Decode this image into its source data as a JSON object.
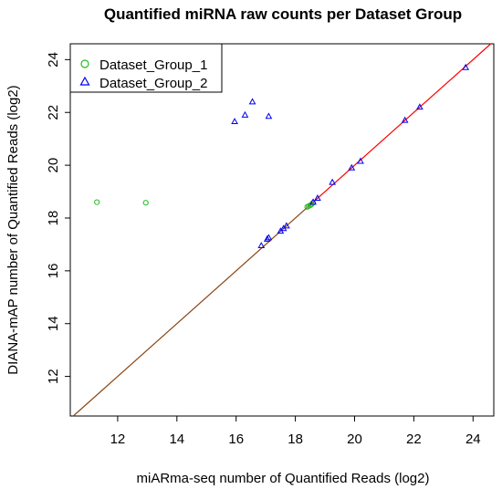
{
  "chart_data": {
    "type": "scatter",
    "title": "Quantified miRNA raw counts per Dataset Group",
    "xlabel": "miARma-seq number of Quantified Reads (log2)",
    "ylabel": "DIANA-mAP number of Quantified Reads (log2)",
    "xlim": [
      10.4,
      24.7
    ],
    "ylim": [
      10.5,
      24.6
    ],
    "x_ticks": [
      12,
      14,
      16,
      18,
      20,
      22,
      24
    ],
    "y_ticks": [
      12,
      14,
      16,
      18,
      20,
      22,
      24
    ],
    "x_tick_labels": [
      "12",
      "14",
      "16",
      "18",
      "20",
      "22",
      "24"
    ],
    "y_tick_labels": [
      "12",
      "14",
      "16",
      "18",
      "20",
      "22",
      "24"
    ],
    "grid": false,
    "legend_position": "top-left",
    "reference_line": {
      "type": "identity",
      "colors": [
        "#8b4513",
        "#ff0000"
      ],
      "switch_at": 18.4
    },
    "series": [
      {
        "name": "Dataset_Group_1",
        "marker": "circle",
        "color": "#22bb22",
        "points": [
          [
            11.3,
            18.6
          ],
          [
            12.95,
            18.58
          ],
          [
            18.4,
            18.42
          ],
          [
            18.45,
            18.45
          ],
          [
            18.5,
            18.48
          ],
          [
            18.55,
            18.52
          ],
          [
            18.6,
            18.58
          ]
        ]
      },
      {
        "name": "Dataset_Group_2",
        "marker": "triangle",
        "color": "#0000ee",
        "points": [
          [
            15.95,
            21.65
          ],
          [
            16.3,
            21.9
          ],
          [
            16.55,
            22.4
          ],
          [
            17.1,
            21.85
          ],
          [
            16.85,
            16.95
          ],
          [
            17.05,
            17.2
          ],
          [
            17.1,
            17.25
          ],
          [
            17.5,
            17.5
          ],
          [
            17.6,
            17.6
          ],
          [
            17.7,
            17.7
          ],
          [
            18.6,
            18.6
          ],
          [
            18.75,
            18.75
          ],
          [
            19.25,
            19.35
          ],
          [
            19.9,
            19.9
          ],
          [
            20.2,
            20.15
          ],
          [
            21.7,
            21.7
          ],
          [
            22.2,
            22.2
          ],
          [
            23.75,
            23.7
          ]
        ]
      }
    ]
  }
}
